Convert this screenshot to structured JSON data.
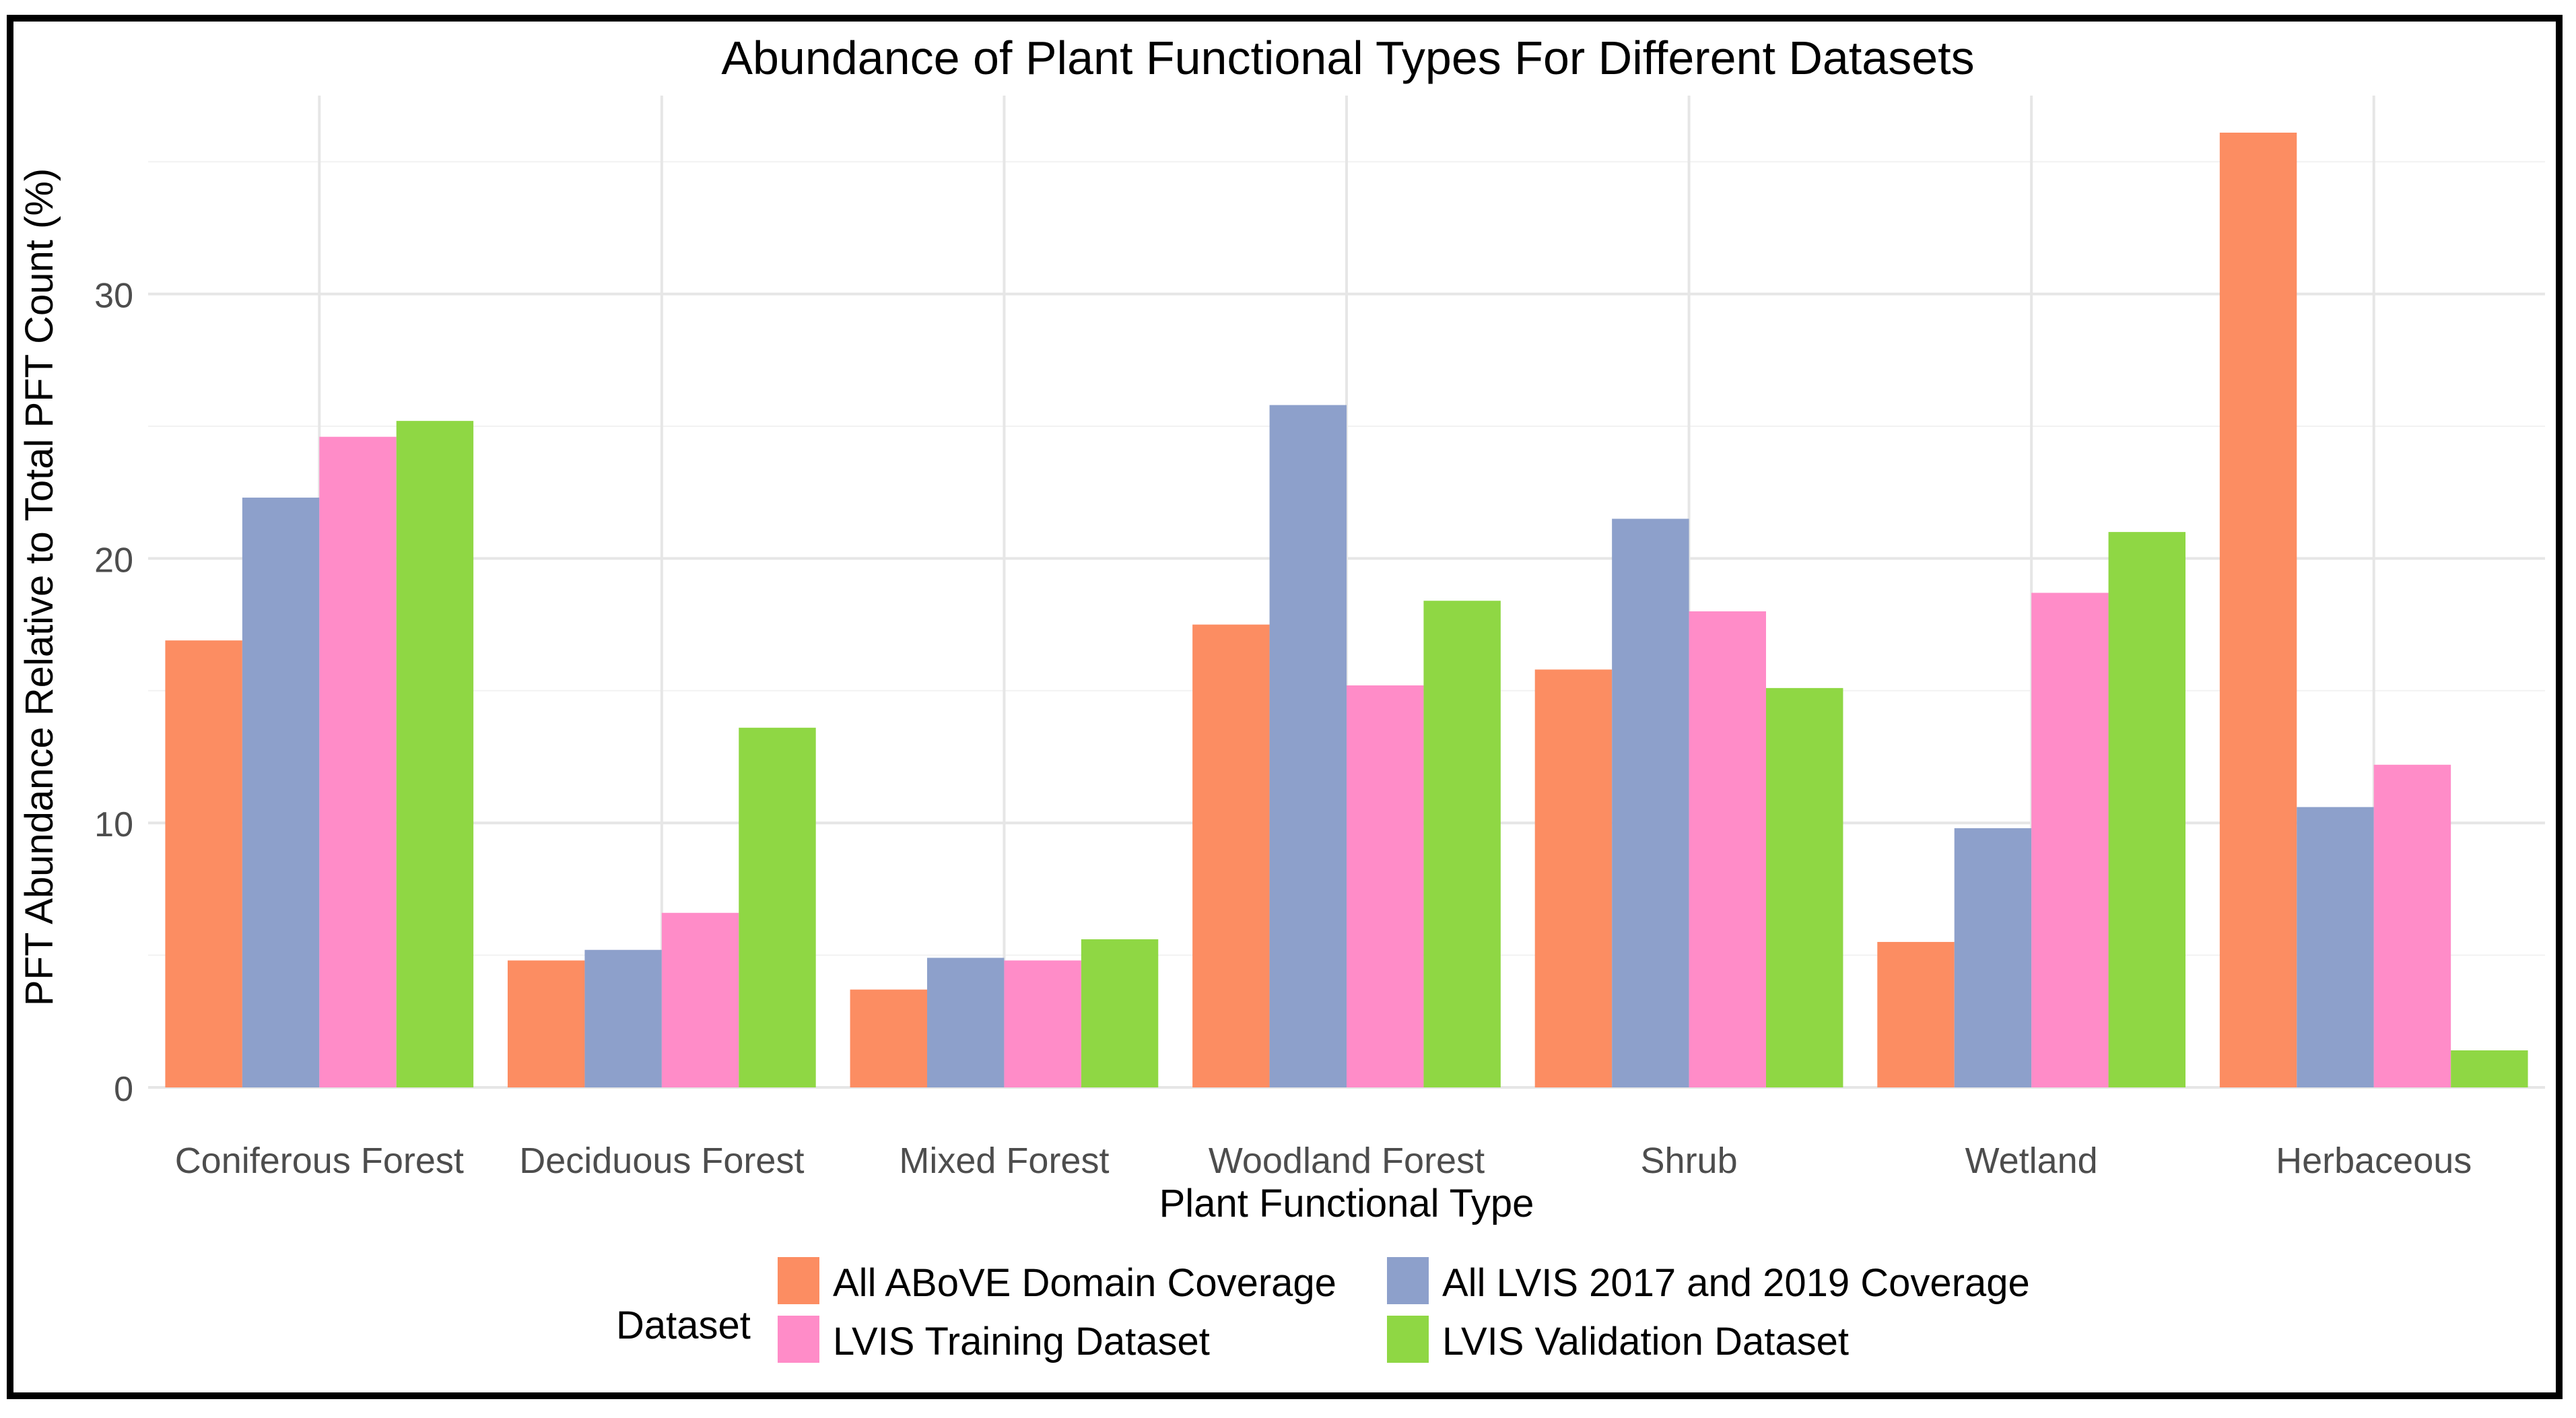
{
  "chart_data": {
    "type": "bar",
    "title": "Abundance of Plant Functional Types For Different Datasets",
    "xlabel": "Plant Functional Type",
    "ylabel": "PFT Abundance Relative to Total PFT Count (%)",
    "ylim": [
      0,
      37.5
    ],
    "yticks": [
      0,
      10,
      20,
      30
    ],
    "grid": true,
    "legend_title": "Dataset",
    "legend_position": "bottom",
    "categories": [
      "Coniferous Forest",
      "Deciduous Forest",
      "Mixed Forest",
      "Woodland Forest",
      "Shrub",
      "Wetland",
      "Herbaceous"
    ],
    "series": [
      {
        "name": "All ABoVE Domain Coverage",
        "color": "#FC8D62",
        "values": [
          16.9,
          4.8,
          3.7,
          17.5,
          15.8,
          5.5,
          36.1
        ]
      },
      {
        "name": "All LVIS 2017 and 2019 Coverage",
        "color": "#8DA0CB",
        "values": [
          22.3,
          5.2,
          4.9,
          25.8,
          21.5,
          9.8,
          10.6
        ]
      },
      {
        "name": "LVIS Training Dataset",
        "color": "#FF8CC8",
        "values": [
          24.6,
          6.6,
          4.8,
          15.2,
          18.0,
          18.7,
          12.2
        ]
      },
      {
        "name": "LVIS Validation Dataset",
        "color": "#8FD744",
        "values": [
          25.2,
          13.6,
          5.6,
          18.4,
          15.1,
          21.0,
          1.4
        ]
      }
    ]
  }
}
